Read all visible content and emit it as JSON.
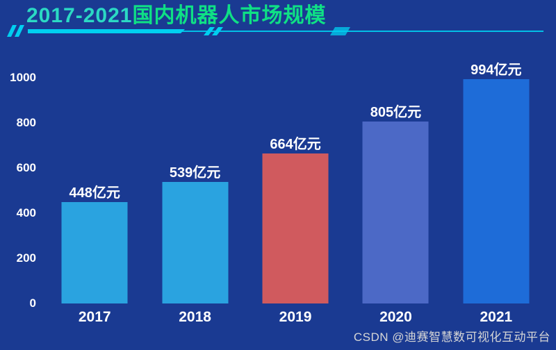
{
  "page": {
    "background": "#1A3A92"
  },
  "header": {
    "title_range": "2017-2021",
    "title_text": "国内机器人市场规模",
    "accent_color": "#00CFF0"
  },
  "watermark": "CSDN @迪赛智慧数可视化互动平台",
  "chart_data": {
    "type": "bar",
    "title": "2017-2021国内机器人市场规模",
    "categories": [
      "2017",
      "2018",
      "2019",
      "2020",
      "2021"
    ],
    "values": [
      448,
      539,
      664,
      805,
      994
    ],
    "unit": "亿元",
    "data_labels": [
      "448亿元",
      "539亿元",
      "664亿元",
      "805亿元",
      "994亿元"
    ],
    "bar_colors": [
      "#2AA3E0",
      "#2AA3E0",
      "#D05A5E",
      "#4C69C6",
      "#1E6CD8"
    ],
    "xlabel": "",
    "ylabel": "",
    "ylim": [
      0,
      1000
    ],
    "yticks": [
      0,
      200,
      400,
      600,
      800,
      1000
    ],
    "grid": false,
    "legend": false,
    "label_color": "#ffffff"
  }
}
